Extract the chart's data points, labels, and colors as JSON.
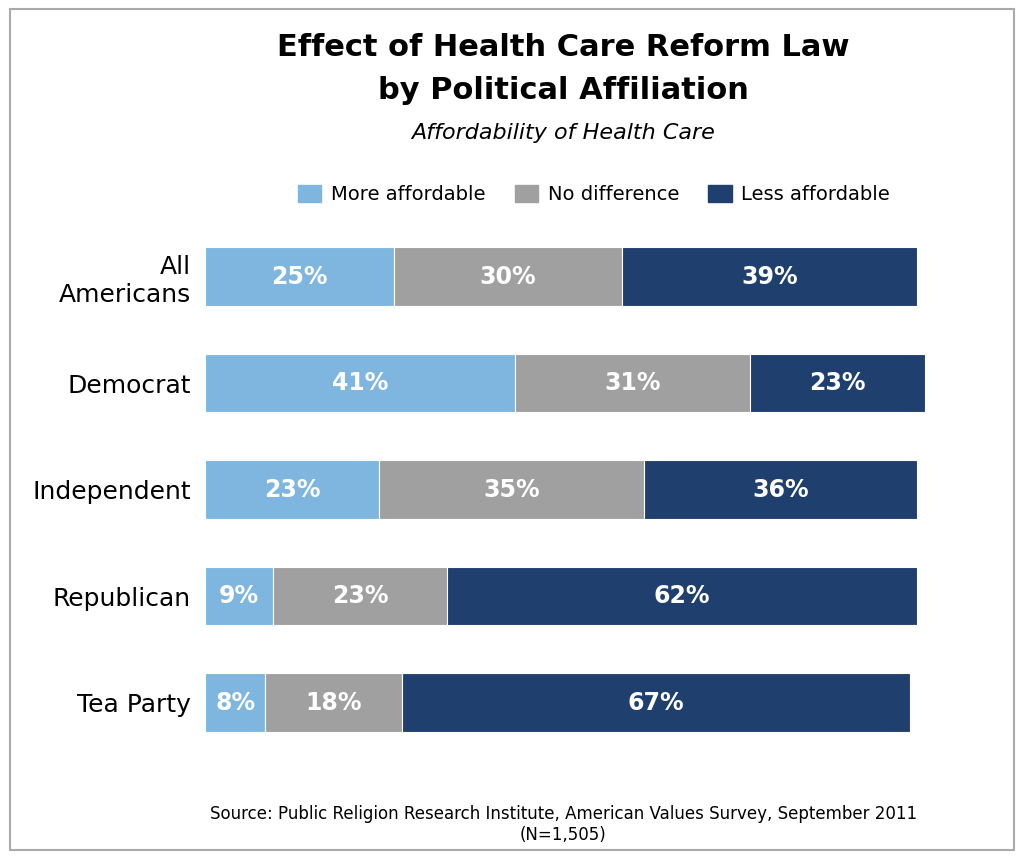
{
  "title_line1": "Effect of Health Care Reform Law",
  "title_line2": "by Political Affiliation",
  "subtitle": "Affordability of Health Care",
  "categories": [
    "All\nAmericans",
    "Democrat",
    "Independent",
    "Republican",
    "Tea Party"
  ],
  "more_affordable": [
    25,
    41,
    23,
    9,
    8
  ],
  "no_difference": [
    30,
    31,
    35,
    23,
    18
  ],
  "less_affordable": [
    39,
    23,
    36,
    62,
    67
  ],
  "color_more": "#7EB6E0",
  "color_no": "#A0A0A0",
  "color_less": "#1F3F6E",
  "legend_labels": [
    "More affordable",
    "No difference",
    "Less affordable"
  ],
  "source_text": "Source: Public Religion Research Institute, American Values Survey, September 2011\n(N=1,505)",
  "bar_height": 0.55,
  "background_color": "#FFFFFF",
  "text_color_white": "#FFFFFF",
  "title_fontsize": 22,
  "subtitle_fontsize": 16,
  "label_fontsize": 18,
  "bar_label_fontsize": 17,
  "legend_fontsize": 14,
  "source_fontsize": 12
}
